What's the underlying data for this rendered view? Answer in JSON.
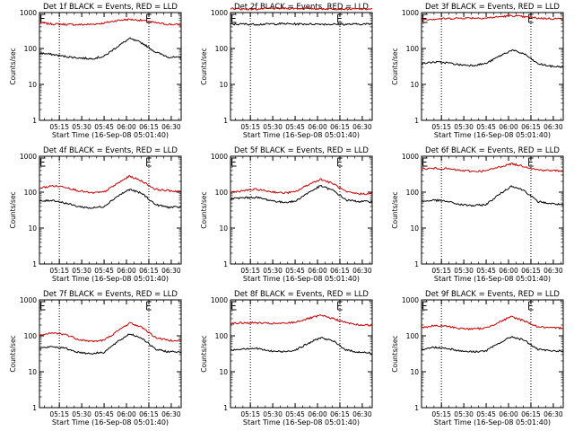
{
  "chart_data": [
    {
      "type": "line",
      "title": "Det 1f BLACK = Events, RED = LLD",
      "xlabel": "Start Time (16-Sep-08 05:01:40)",
      "ylabel": "Counts/sec",
      "xticks": [
        "05:15",
        "05:30",
        "05:45",
        "06:00",
        "06:15",
        "06:30"
      ],
      "yticks": [
        "1",
        "10",
        "100",
        "1000"
      ],
      "ylim": [
        1,
        1000
      ],
      "yscale": "log",
      "markers": [
        "05:15",
        "06:15"
      ],
      "flags": [
        "05:02",
        "06:13"
      ],
      "series": [
        {
          "color": "#cc0000",
          "values": [
            520,
            480,
            470,
            460,
            470,
            510,
            600,
            650,
            600,
            520,
            470,
            460
          ]
        },
        {
          "color": "#000000",
          "values": [
            75,
            68,
            60,
            55,
            52,
            60,
            110,
            190,
            140,
            80,
            58,
            55
          ]
        }
      ]
    },
    {
      "type": "line",
      "title": "Det 2f BLACK = Events, RED = LLD",
      "xlabel": "Start Time (16-Sep-08 05:01:40)",
      "ylabel": "Counts/sec",
      "xticks": [
        "05:15",
        "05:30",
        "05:45",
        "06:00",
        "06:15",
        "06:30"
      ],
      "yticks": [
        "1",
        "10",
        "100",
        "1000"
      ],
      "ylim": [
        1,
        1000
      ],
      "yscale": "log",
      "markers": [
        "05:15",
        "06:15"
      ],
      "flags": [
        "05:02",
        "06:13"
      ],
      "series": [
        {
          "color": "#cc0000",
          "values": [
            1300,
            1250,
            1250,
            1300,
            1300,
            1300,
            1300,
            1280,
            1270,
            1260,
            1250,
            1250
          ]
        },
        {
          "color": "#000000",
          "values": [
            470,
            480,
            470,
            480,
            490,
            480,
            480,
            480,
            470,
            470,
            480,
            480
          ]
        }
      ]
    },
    {
      "type": "line",
      "title": "Det 3f BLACK = Events, RED = LLD",
      "xlabel": "Start Time (16-Sep-08 05:01:40)",
      "ylabel": "Counts/sec",
      "xticks": [
        "05:15",
        "05:30",
        "05:45",
        "06:00",
        "06:15",
        "06:30"
      ],
      "yticks": [
        "1",
        "10",
        "100",
        "1000"
      ],
      "ylim": [
        1,
        1000
      ],
      "yscale": "log",
      "markers": [
        "05:15",
        "06:15"
      ],
      "flags": [
        "05:02",
        "06:13"
      ],
      "series": [
        {
          "color": "#cc0000",
          "values": [
            650,
            660,
            680,
            700,
            710,
            700,
            760,
            820,
            760,
            700,
            680,
            670
          ]
        },
        {
          "color": "#000000",
          "values": [
            38,
            42,
            40,
            35,
            34,
            38,
            60,
            90,
            70,
            38,
            32,
            31
          ]
        }
      ]
    },
    {
      "type": "line",
      "title": "Det 4f BLACK = Events, RED = LLD",
      "xlabel": "Start Time (16-Sep-08 05:01:40)",
      "ylabel": "Counts/sec",
      "xticks": [
        "05:15",
        "05:30",
        "05:45",
        "06:00",
        "06:15",
        "06:30"
      ],
      "yticks": [
        "1",
        "10",
        "100",
        "1000"
      ],
      "ylim": [
        1,
        1000
      ],
      "yscale": "log",
      "markers": [
        "05:15",
        "06:15"
      ],
      "flags": [
        "05:02",
        "06:13"
      ],
      "series": [
        {
          "color": "#cc0000",
          "values": [
            130,
            150,
            140,
            110,
            95,
            100,
            170,
            280,
            200,
            120,
            110,
            105
          ]
        },
        {
          "color": "#000000",
          "values": [
            55,
            60,
            50,
            40,
            36,
            40,
            75,
            120,
            90,
            45,
            38,
            38
          ]
        }
      ]
    },
    {
      "type": "line",
      "title": "Det 5f BLACK = Events, RED = LLD",
      "xlabel": "Start Time (16-Sep-08 05:01:40)",
      "ylabel": "Counts/sec",
      "xticks": [
        "05:15",
        "05:30",
        "05:45",
        "06:00",
        "06:15",
        "06:30"
      ],
      "yticks": [
        "1",
        "10",
        "100",
        "1000"
      ],
      "ylim": [
        1,
        1000
      ],
      "yscale": "log",
      "markers": [
        "05:15",
        "06:15"
      ],
      "flags": [
        "05:02",
        "06:13"
      ],
      "series": [
        {
          "color": "#cc0000",
          "values": [
            100,
            110,
            120,
            105,
            95,
            100,
            160,
            230,
            170,
            100,
            90,
            90
          ]
        },
        {
          "color": "#000000",
          "values": [
            65,
            70,
            72,
            60,
            52,
            55,
            95,
            150,
            110,
            60,
            55,
            55
          ]
        }
      ]
    },
    {
      "type": "line",
      "title": "Det 6f BLACK = Events, RED = LLD",
      "xlabel": "Start Time (16-Sep-08 05:01:40)",
      "ylabel": "Counts/sec",
      "xticks": [
        "05:15",
        "05:30",
        "05:45",
        "06:00",
        "06:15",
        "06:30"
      ],
      "yticks": [
        "1",
        "10",
        "100",
        "1000"
      ],
      "ylim": [
        1,
        1000
      ],
      "yscale": "log",
      "markers": [
        "05:15",
        "06:15"
      ],
      "flags": [
        "05:02",
        "06:13"
      ],
      "series": [
        {
          "color": "#cc0000",
          "values": [
            440,
            460,
            450,
            400,
            380,
            390,
            500,
            620,
            520,
            420,
            400,
            390
          ]
        },
        {
          "color": "#000000",
          "values": [
            55,
            60,
            55,
            45,
            42,
            45,
            85,
            150,
            110,
            55,
            48,
            45
          ]
        }
      ]
    },
    {
      "type": "line",
      "title": "Det 7f BLACK = Events, RED = LLD",
      "xlabel": "Start Time (16-Sep-08 05:01:40)",
      "ylabel": "Counts/sec",
      "xticks": [
        "05:15",
        "05:30",
        "05:45",
        "06:00",
        "06:15",
        "06:30"
      ],
      "yticks": [
        "1",
        "10",
        "100",
        "1000"
      ],
      "ylim": [
        1,
        1000
      ],
      "yscale": "log",
      "markers": [
        "05:15",
        "06:15"
      ],
      "flags": [
        "05:02",
        "06:13"
      ],
      "series": [
        {
          "color": "#cc0000",
          "values": [
            100,
            120,
            110,
            80,
            70,
            75,
            130,
            230,
            170,
            90,
            75,
            75
          ]
        },
        {
          "color": "#000000",
          "values": [
            45,
            50,
            45,
            35,
            32,
            35,
            65,
            115,
            85,
            42,
            36,
            36
          ]
        }
      ]
    },
    {
      "type": "line",
      "title": "Det 8f BLACK = Events, RED = LLD",
      "xlabel": "Start Time (16-Sep-08 05:01:40)",
      "ylabel": "Counts/sec",
      "xticks": [
        "05:15",
        "05:30",
        "05:45",
        "06:00",
        "06:15",
        "06:30"
      ],
      "yticks": [
        "1",
        "10",
        "100",
        "1000"
      ],
      "ylim": [
        1,
        1000
      ],
      "yscale": "log",
      "markers": [
        "05:15",
        "06:15"
      ],
      "flags": [
        "05:02",
        "06:13"
      ],
      "series": [
        {
          "color": "#cc0000",
          "values": [
            220,
            230,
            230,
            220,
            220,
            240,
            300,
            370,
            300,
            230,
            200,
            200
          ]
        },
        {
          "color": "#000000",
          "values": [
            40,
            44,
            45,
            38,
            36,
            40,
            60,
            90,
            70,
            40,
            35,
            33
          ]
        }
      ]
    },
    {
      "type": "line",
      "title": "Det 9f BLACK = Events, RED = LLD",
      "xlabel": "Start Time (16-Sep-08 05:01:40)",
      "ylabel": "Counts/sec",
      "xticks": [
        "05:15",
        "05:30",
        "05:45",
        "06:00",
        "06:15",
        "06:30"
      ],
      "yticks": [
        "1",
        "10",
        "100",
        "1000"
      ],
      "ylim": [
        1,
        1000
      ],
      "yscale": "log",
      "markers": [
        "05:15",
        "06:15"
      ],
      "flags": [
        "05:02",
        "06:13"
      ],
      "series": [
        {
          "color": "#cc0000",
          "values": [
            170,
            190,
            185,
            160,
            155,
            165,
            240,
            340,
            260,
            180,
            165,
            165
          ]
        },
        {
          "color": "#000000",
          "values": [
            42,
            48,
            45,
            38,
            36,
            38,
            62,
            95,
            75,
            42,
            38,
            38
          ]
        }
      ]
    }
  ]
}
